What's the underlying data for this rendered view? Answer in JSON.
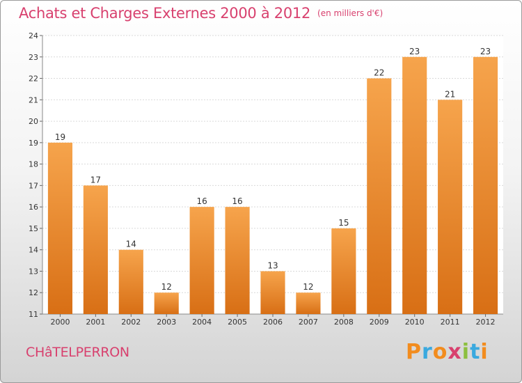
{
  "chart_data": {
    "type": "bar",
    "title": "Achats et Charges Externes 2000 à 2012",
    "unit": "(en milliers d'€)",
    "categories": [
      "2000",
      "2001",
      "2002",
      "2003",
      "2004",
      "2005",
      "2006",
      "2007",
      "2008",
      "2009",
      "2010",
      "2011",
      "2012"
    ],
    "values": [
      19,
      17,
      14,
      12,
      16,
      16,
      13,
      12,
      15,
      22,
      23,
      21,
      23
    ],
    "ylim": [
      11,
      24
    ],
    "yticks": [
      11,
      12,
      13,
      14,
      15,
      16,
      17,
      18,
      19,
      20,
      21,
      22,
      23,
      24
    ],
    "xlabel": "",
    "ylabel": "",
    "grid": true,
    "bar_color_top": "#f6a44c",
    "bar_color_bottom": "#d86f15"
  },
  "footer": {
    "city": "CHâTELPERRON",
    "brand_letters": [
      "P",
      "r",
      "o",
      "x",
      "i",
      "t",
      "i"
    ],
    "brand_colors": [
      "#f28c1e",
      "#3aa9df",
      "#f28c1e",
      "#d8406e",
      "#8cbf3f",
      "#3aa9df",
      "#f28c1e"
    ]
  }
}
